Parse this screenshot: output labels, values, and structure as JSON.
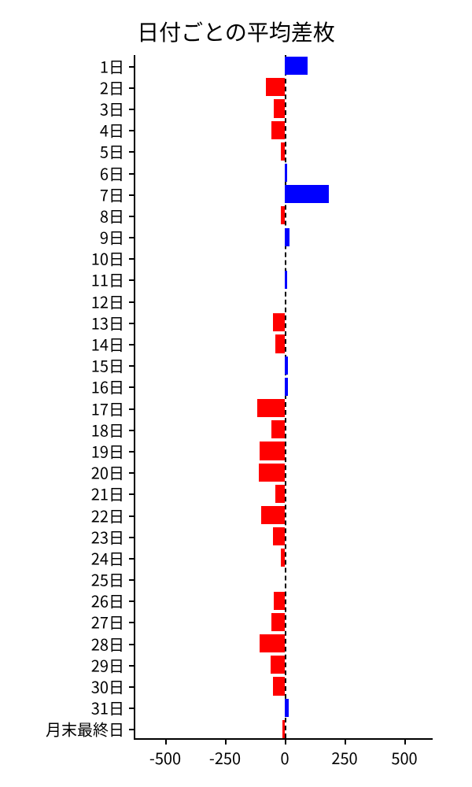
{
  "chart": {
    "type": "bar-horizontal",
    "title": "日付ごとの平均差枚",
    "title_fontsize": 28,
    "background_color": "#ffffff",
    "bar_color_positive": "#0000ff",
    "bar_color_negative": "#ff0000",
    "axis_color": "#000000",
    "label_fontsize": 20,
    "xlim_min": -625,
    "xlim_max": 625,
    "xtick_values": [
      -500,
      -250,
      0,
      250,
      500
    ],
    "xtick_labels": [
      "-500",
      "-250",
      "0",
      "250",
      "500"
    ],
    "bar_height_ratio": 0.85,
    "categories": [
      "1日",
      "2日",
      "3日",
      "4日",
      "5日",
      "6日",
      "7日",
      "8日",
      "9日",
      "10日",
      "11日",
      "12日",
      "13日",
      "14日",
      "15日",
      "16日",
      "17日",
      "18日",
      "19日",
      "20日",
      "21日",
      "22日",
      "23日",
      "24日",
      "25日",
      "26日",
      "27日",
      "28日",
      "29日",
      "30日",
      "31日",
      "月末最終日"
    ],
    "values": [
      95,
      -80,
      -45,
      -55,
      -15,
      10,
      185,
      -15,
      20,
      0,
      10,
      0,
      -50,
      -40,
      12,
      12,
      -115,
      -55,
      -105,
      -110,
      -40,
      -100,
      -50,
      -15,
      0,
      -45,
      -55,
      -105,
      -60,
      -50,
      15,
      -10
    ]
  }
}
